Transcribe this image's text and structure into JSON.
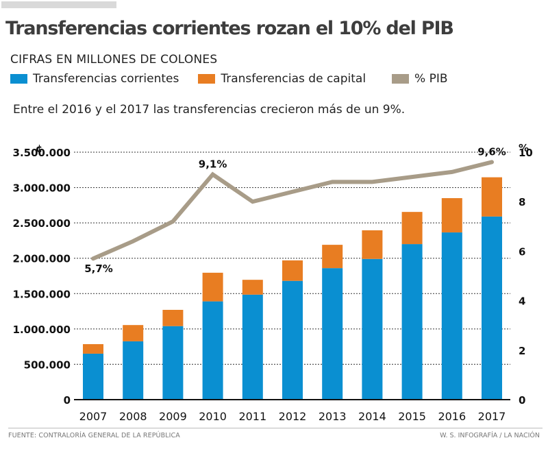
{
  "header": {
    "title": "Transferencias corrientes rozan el 10% del PIB",
    "subtitle": "CIFRAS EN MILLONES DE COLONES",
    "note": "Entre el 2016 y el 2017 las transferencias crecieron más de un 9%."
  },
  "legend": [
    {
      "label": "Transferencias corrientes",
      "color": "#0a8fd1"
    },
    {
      "label": "Transferencias de capital",
      "color": "#e87d22"
    },
    {
      "label": "% PIB",
      "color": "#a89c88"
    }
  ],
  "footer": {
    "source": "FUENTE: CONTRALORÍA GENERAL DE LA REPÚBLICA",
    "credit": "W. S. INFOGRAFÍA / LA NACIÓN"
  },
  "chart_data": {
    "type": "bar",
    "stacked": true,
    "title": "Transferencias corrientes rozan el 10% del PIB",
    "categories": [
      "2007",
      "2008",
      "2009",
      "2010",
      "2011",
      "2012",
      "2013",
      "2014",
      "2015",
      "2016",
      "2017"
    ],
    "series": [
      {
        "name": "Transferencias corrientes",
        "type": "bar",
        "axis": "left",
        "color": "#0a8fd1",
        "values": [
          650000,
          825000,
          1040000,
          1390000,
          1485000,
          1680000,
          1860000,
          1990000,
          2200000,
          2365000,
          2590000
        ]
      },
      {
        "name": "Transferencias de capital",
        "type": "bar",
        "axis": "left",
        "color": "#e87d22",
        "values": [
          135000,
          230000,
          230000,
          405000,
          210000,
          290000,
          330000,
          405000,
          455000,
          485000,
          555000
        ]
      },
      {
        "name": "% PIB",
        "type": "line",
        "axis": "right",
        "color": "#a89c88",
        "values": [
          5.7,
          6.4,
          7.2,
          9.1,
          8.0,
          8.4,
          8.8,
          8.8,
          9.0,
          9.2,
          9.6
        ]
      }
    ],
    "left_axis": {
      "unit_label": "¢",
      "ylim": [
        0,
        3500000
      ],
      "ticks": [
        0,
        500000,
        1000000,
        1500000,
        2000000,
        2500000,
        3000000,
        3500000
      ],
      "tick_labels": [
        "0",
        "500.000",
        "1.000.000",
        "1.500.000",
        "2.000.000",
        "2.500.000",
        "3.000.000",
        "3.500.000"
      ]
    },
    "right_axis": {
      "unit_label": "%",
      "ylim": [
        0,
        10
      ],
      "ticks": [
        0,
        2,
        4,
        6,
        8,
        10
      ],
      "tick_labels": [
        "0",
        "2",
        "4",
        "6",
        "8",
        "10"
      ]
    },
    "annotations": [
      {
        "index": 0,
        "text": "5,7%",
        "position": "below"
      },
      {
        "index": 3,
        "text": "9,1%",
        "position": "above"
      },
      {
        "index": 10,
        "text": "9,6%",
        "position": "above"
      }
    ],
    "grid": true,
    "grid_style": "dotted",
    "xlabel": "",
    "ylabel": "¢",
    "y2label": "%"
  }
}
